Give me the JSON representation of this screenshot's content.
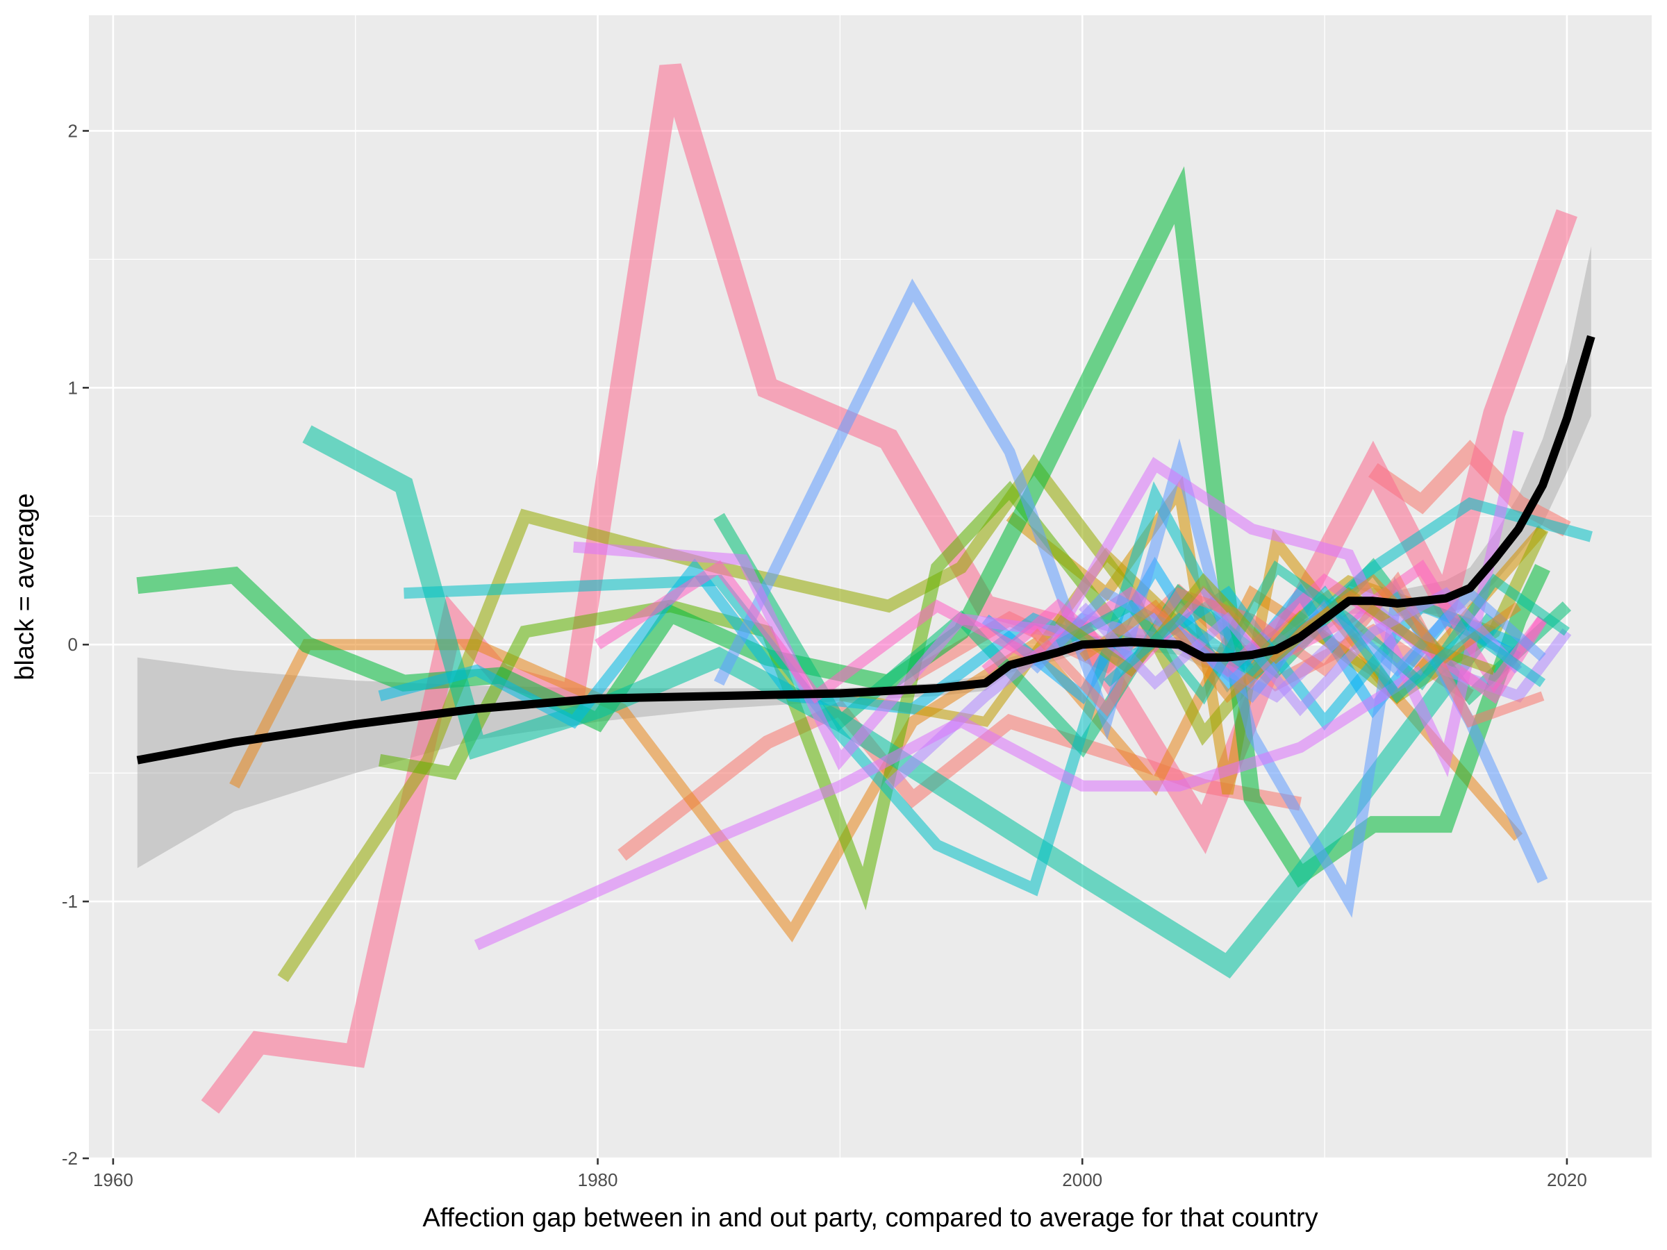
{
  "chart_data": {
    "type": "line",
    "xlabel": "Affection gap between in and out party, compared to average for that country",
    "ylabel": "black = average",
    "xlim": [
      1959,
      2023.5
    ],
    "ylim": [
      -2.0,
      2.45
    ],
    "x_ticks": [
      1960,
      1980,
      2000,
      2020
    ],
    "x_tick_labels": [
      "1960",
      "1980",
      "2000",
      "2020"
    ],
    "y_ticks": [
      -2,
      -1,
      0,
      1,
      2
    ],
    "y_tick_labels": [
      "-2",
      "-1",
      "0",
      "1",
      "2"
    ],
    "grid": true,
    "background": "#ebebeb",
    "legend": "none",
    "series": [
      {
        "color": "#f8766d",
        "width": 10,
        "x": [
          1981,
          1987,
          1990,
          1993,
          1997,
          2002,
          2005,
          2009
        ],
        "y": [
          -0.82,
          -0.38,
          -0.25,
          -0.6,
          -0.3,
          -0.45,
          -0.55,
          -0.62
        ]
      },
      {
        "color": "#f8766d",
        "width": 12,
        "x": [
          2012,
          2014,
          2016,
          2018,
          2020
        ],
        "y": [
          0.68,
          0.55,
          0.75,
          0.55,
          0.45
        ]
      },
      {
        "color": "#f8766d",
        "width": 10,
        "x": [
          1993,
          1997,
          2001,
          2004,
          2008,
          2012,
          2016
        ],
        "y": [
          -0.12,
          0.1,
          -0.08,
          0.2,
          -0.15,
          0.05,
          -0.2
        ]
      },
      {
        "color": "#fb6a8e",
        "width": 16,
        "x": [
          1964,
          1966,
          1970,
          1974,
          1976,
          1979,
          1983,
          1987,
          1992,
          1996,
          2000,
          2005,
          2008,
          2012,
          2015,
          2017,
          2020
        ],
        "y": [
          -1.8,
          -1.55,
          -1.6,
          0.1,
          -0.12,
          -0.2,
          2.25,
          1.0,
          0.8,
          0.15,
          0.05,
          -0.72,
          -0.02,
          0.7,
          0.15,
          0.9,
          1.68
        ]
      },
      {
        "color": "#e7861b",
        "width": 8,
        "x": [
          1965,
          1968,
          1975,
          1981,
          1988,
          1993,
          1998,
          2003,
          2007,
          2012,
          2018
        ],
        "y": [
          -0.55,
          0.0,
          0.0,
          -0.25,
          -1.12,
          -0.3,
          0.0,
          -0.55,
          0.2,
          -0.1,
          -0.75
        ]
      },
      {
        "color": "#d39200",
        "width": 8,
        "x": [
          1997,
          2001,
          2004,
          2006,
          2008,
          2013,
          2019
        ],
        "y": [
          0.5,
          0.2,
          0.6,
          -0.58,
          0.4,
          -0.2,
          0.45
        ]
      },
      {
        "color": "#c09b00",
        "width": 7,
        "x": [
          1990,
          1996,
          2001,
          2006,
          2011,
          2017
        ],
        "y": [
          -0.2,
          -0.3,
          0.35,
          -0.1,
          0.25,
          0.05
        ]
      },
      {
        "color": "#93aa00",
        "width": 9,
        "x": [
          1967,
          1973,
          1977,
          1985,
          1992,
          1995,
          1998,
          2002,
          2005,
          2009,
          2013,
          2017,
          2019
        ],
        "y": [
          -1.3,
          -0.45,
          0.5,
          0.3,
          0.15,
          0.3,
          0.7,
          0.2,
          -0.35,
          0.1,
          -0.2,
          0.05,
          0.45
        ]
      },
      {
        "color": "#5eb300",
        "width": 9,
        "x": [
          1971,
          1974,
          1977,
          1983,
          1987,
          1991,
          1994,
          1997,
          2002
        ],
        "y": [
          -0.45,
          -0.5,
          0.05,
          0.15,
          0.05,
          -0.95,
          0.3,
          0.6,
          0.0
        ]
      },
      {
        "color": "#00ba38",
        "width": 12,
        "x": [
          1961,
          1965,
          1968,
          1972,
          1976,
          1980,
          1983,
          1987,
          1992,
          1995,
          1998,
          2004,
          2007,
          2009,
          2012,
          2015,
          2018,
          2019
        ],
        "y": [
          0.23,
          0.27,
          0.0,
          -0.15,
          -0.12,
          -0.3,
          0.12,
          -0.05,
          -0.15,
          0.05,
          0.6,
          1.75,
          -0.6,
          -0.9,
          -0.7,
          -0.7,
          0.1,
          0.3
        ]
      },
      {
        "color": "#00bf74",
        "width": 9,
        "x": [
          1985,
          1990,
          1995,
          2000,
          2004,
          2008,
          2012,
          2016,
          2020
        ],
        "y": [
          0.5,
          -0.3,
          0.1,
          -0.4,
          0.2,
          -0.1,
          0.3,
          -0.2,
          0.15
        ]
      },
      {
        "color": "#00c19f",
        "width": 14,
        "x": [
          1968,
          1972,
          1975,
          1980,
          1985,
          1990,
          1995,
          2000,
          2006,
          2009,
          2013,
          2017
        ],
        "y": [
          0.82,
          0.62,
          -0.4,
          -0.25,
          -0.05,
          -0.3,
          -0.6,
          -0.9,
          -1.25,
          -0.9,
          -0.4,
          0.1
        ]
      },
      {
        "color": "#00bfc4",
        "width": 8,
        "x": [
          1972,
          1985,
          1990,
          1994,
          1998,
          2003,
          2007,
          2012,
          2016,
          2021
        ],
        "y": [
          0.2,
          0.25,
          -0.35,
          -0.78,
          -0.95,
          0.58,
          -0.12,
          0.3,
          0.55,
          0.42
        ]
      },
      {
        "color": "#00b9e3",
        "width": 8,
        "x": [
          1971,
          1975,
          1979,
          1984,
          1988,
          1993,
          1998,
          2002,
          2006,
          2010,
          2014,
          2018
        ],
        "y": [
          -0.2,
          -0.1,
          -0.3,
          0.3,
          -0.2,
          -0.25,
          0.1,
          -0.05,
          0.2,
          -0.3,
          0.15,
          0.0
        ]
      },
      {
        "color": "#00adfa",
        "width": 8,
        "x": [
          1996,
          2000,
          2003,
          2006,
          2009,
          2012,
          2015,
          2018
        ],
        "y": [
          0.1,
          -0.2,
          0.3,
          -0.15,
          0.2,
          -0.25,
          0.1,
          -0.05
        ]
      },
      {
        "color": "#619cff",
        "width": 8,
        "x": [
          1985,
          1993,
          1997,
          2001,
          2004,
          2007,
          2011,
          2013,
          2016,
          2019
        ],
        "y": [
          -0.15,
          1.38,
          0.75,
          -0.3,
          0.72,
          -0.35,
          -1.0,
          0.2,
          -0.3,
          -0.92
        ]
      },
      {
        "color": "#ae87ff",
        "width": 8,
        "x": [
          1992,
          1996,
          2000,
          2004,
          2008,
          2012,
          2015,
          2018,
          2020
        ],
        "y": [
          -0.55,
          -0.2,
          0.1,
          0.0,
          -0.2,
          0.15,
          -0.1,
          -0.2,
          0.05
        ]
      },
      {
        "color": "#db72fb",
        "width": 8,
        "x": [
          1975,
          1985,
          1990,
          1995,
          2000,
          2004,
          2009,
          2014
        ],
        "y": [
          -1.17,
          -0.75,
          -0.55,
          -0.3,
          -0.55,
          -0.55,
          -0.4,
          -0.1
        ]
      },
      {
        "color": "#db72fb",
        "width": 8,
        "x": [
          1979,
          1986,
          1990,
          1995,
          1999,
          2003,
          2007,
          2011,
          2015,
          2018
        ],
        "y": [
          0.38,
          0.33,
          -0.45,
          0.1,
          0.05,
          0.7,
          0.45,
          0.35,
          -0.45,
          0.83
        ]
      },
      {
        "color": "#ff61c3",
        "width": 8,
        "x": [
          1980,
          1985,
          1989,
          1994,
          1998,
          2002,
          2006,
          2010,
          2014,
          2017,
          2019
        ],
        "y": [
          0.0,
          0.3,
          -0.2,
          0.15,
          -0.05,
          0.2,
          -0.1,
          0.25,
          0.0,
          -0.2,
          0.1
        ]
      },
      {
        "color": "#ff61c3",
        "width": 8,
        "x": [
          1996,
          1999,
          2002,
          2005,
          2008,
          2011,
          2014,
          2017,
          2019
        ],
        "y": [
          -0.1,
          0.15,
          -0.1,
          0.2,
          -0.05,
          0.1,
          0.3,
          -0.15,
          0.1
        ]
      },
      {
        "color": "#f8766d",
        "width": 7,
        "x": [
          1998,
          2001,
          2004,
          2007,
          2010,
          2013,
          2016,
          2019
        ],
        "y": [
          0.05,
          -0.25,
          0.2,
          0.1,
          -0.1,
          0.25,
          -0.3,
          -0.2
        ]
      },
      {
        "color": "#00c19f",
        "width": 7,
        "x": [
          1999,
          2002,
          2005,
          2008,
          2011,
          2014,
          2017,
          2020
        ],
        "y": [
          0.0,
          0.15,
          -0.2,
          0.3,
          0.1,
          -0.15,
          0.25,
          0.05
        ]
      },
      {
        "color": "#619cff",
        "width": 7,
        "x": [
          1998,
          2001,
          2004,
          2007,
          2010,
          2013,
          2016,
          2019
        ],
        "y": [
          -0.1,
          0.2,
          0.05,
          -0.2,
          0.15,
          -0.1,
          0.2,
          -0.05
        ]
      },
      {
        "color": "#93aa00",
        "width": 7,
        "x": [
          1999,
          2002,
          2005,
          2008,
          2011,
          2014,
          2017
        ],
        "y": [
          0.1,
          -0.1,
          0.25,
          -0.05,
          0.2,
          0.0,
          -0.1
        ]
      },
      {
        "color": "#e7861b",
        "width": 7,
        "x": [
          2000,
          2003,
          2006,
          2009,
          2012,
          2015,
          2018
        ],
        "y": [
          -0.05,
          0.15,
          -0.2,
          0.05,
          0.25,
          -0.05,
          0.15
        ]
      },
      {
        "color": "#ae87ff",
        "width": 7,
        "x": [
          2000,
          2003,
          2006,
          2009,
          2012,
          2015,
          2018
        ],
        "y": [
          0.15,
          -0.15,
          0.1,
          -0.25,
          0.05,
          0.2,
          -0.1
        ]
      },
      {
        "color": "#00bfc4",
        "width": 7,
        "x": [
          2001,
          2004,
          2007,
          2010,
          2013,
          2016,
          2019
        ],
        "y": [
          -0.15,
          0.1,
          -0.1,
          0.2,
          -0.2,
          0.05,
          -0.15
        ]
      }
    ],
    "average": {
      "color": "#000000",
      "x": [
        1961,
        1965,
        1970,
        1975,
        1980,
        1985,
        1990,
        1994,
        1996,
        1997,
        1999,
        2000,
        2002,
        2004,
        2005,
        2006,
        2007,
        2008,
        2009,
        2010,
        2011,
        2012,
        2013,
        2014,
        2015,
        2016,
        2017,
        2018,
        2019,
        2020,
        2021
      ],
      "y": [
        -0.45,
        -0.38,
        -0.31,
        -0.25,
        -0.21,
        -0.2,
        -0.19,
        -0.17,
        -0.15,
        -0.08,
        -0.03,
        0.0,
        0.01,
        0.0,
        -0.05,
        -0.05,
        -0.04,
        -0.02,
        0.03,
        0.1,
        0.17,
        0.17,
        0.16,
        0.17,
        0.18,
        0.22,
        0.33,
        0.45,
        0.62,
        0.88,
        1.2
      ],
      "band_upper": [
        -0.05,
        -0.1,
        -0.14,
        -0.16,
        -0.17,
        -0.17,
        -0.17,
        -0.15,
        -0.12,
        -0.05,
        0.0,
        0.03,
        0.04,
        0.03,
        -0.01,
        -0.01,
        0.0,
        0.03,
        0.08,
        0.15,
        0.22,
        0.22,
        0.21,
        0.23,
        0.25,
        0.3,
        0.43,
        0.58,
        0.8,
        1.1,
        1.55
      ],
      "band_lower": [
        -0.87,
        -0.65,
        -0.5,
        -0.37,
        -0.3,
        -0.25,
        -0.22,
        -0.2,
        -0.18,
        -0.11,
        -0.06,
        -0.03,
        -0.02,
        -0.04,
        -0.09,
        -0.09,
        -0.08,
        -0.07,
        -0.02,
        0.05,
        0.12,
        0.12,
        0.11,
        0.12,
        0.12,
        0.15,
        0.24,
        0.35,
        0.47,
        0.67,
        0.89
      ],
      "band_color": "#999999"
    }
  }
}
